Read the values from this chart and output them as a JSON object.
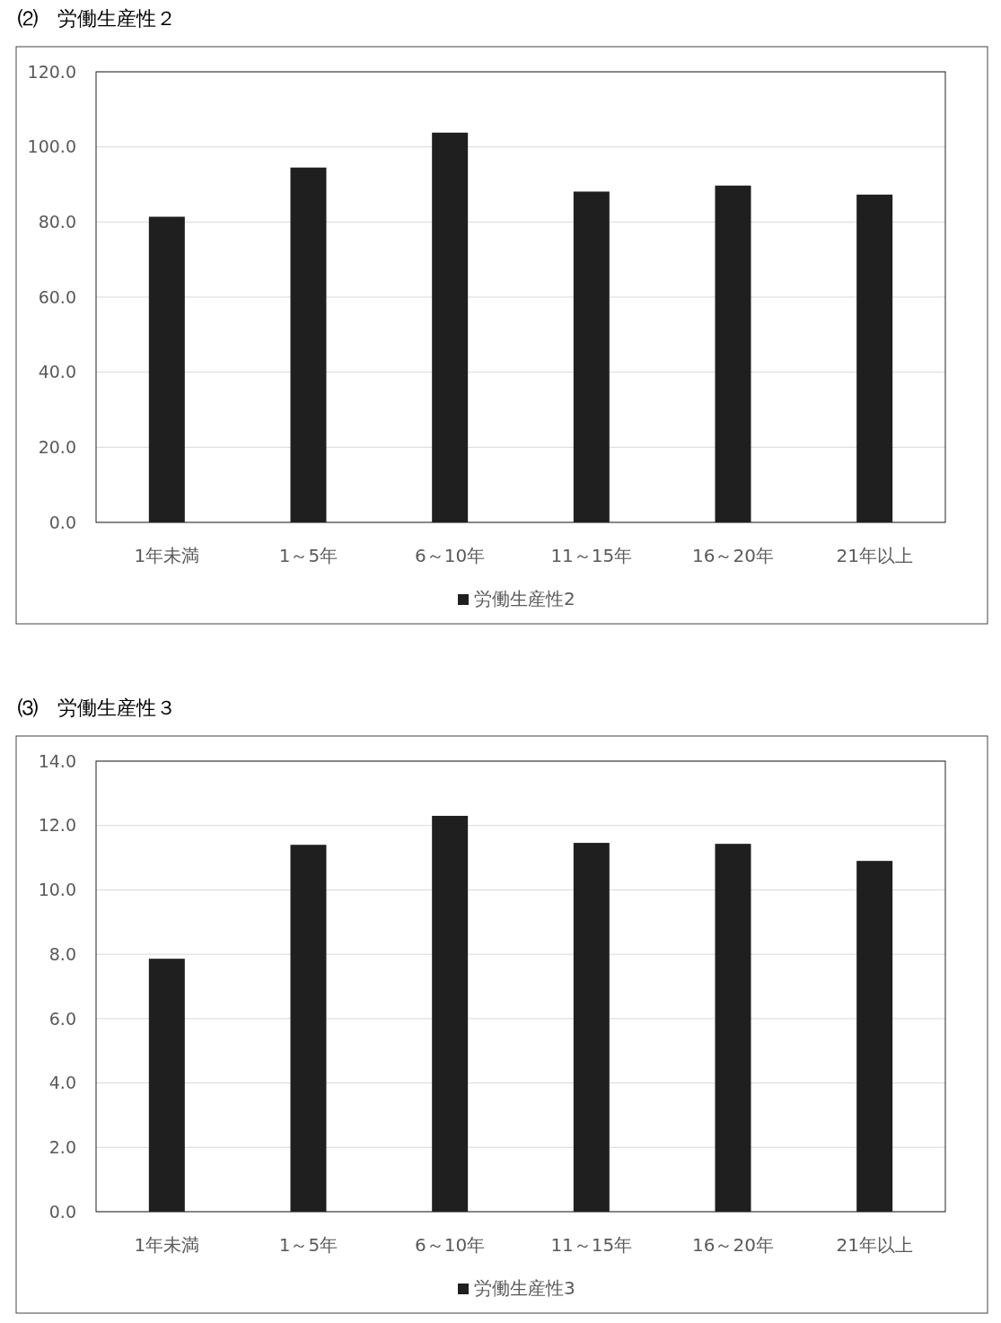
{
  "chart_data": [
    {
      "type": "bar",
      "title": "⑵　労働生産性２",
      "categories": [
        "1年未満",
        "1～5年",
        "6～10年",
        "11～15年",
        "16～20年",
        "21年以上"
      ],
      "series": [
        {
          "name": "労働生産性2",
          "color": "#1f1f1f",
          "values": [
            81.4,
            94.5,
            103.8,
            88.1,
            89.7,
            87.3
          ]
        }
      ],
      "ylim": [
        0,
        120
      ],
      "yticks": [
        {
          "value": 0,
          "label": "0.0"
        },
        {
          "value": 20,
          "label": "20.0"
        },
        {
          "value": 40,
          "label": "40.0"
        },
        {
          "value": 60,
          "label": "60.0"
        },
        {
          "value": 80,
          "label": "80.0"
        },
        {
          "value": 100,
          "label": "100.0"
        },
        {
          "value": 120,
          "label": "120.0"
        }
      ],
      "grid": "y",
      "legend": "bottom"
    },
    {
      "type": "bar",
      "title": "⑶　労働生産性３",
      "categories": [
        "1年未満",
        "1～5年",
        "6～10年",
        "11～15年",
        "16～20年",
        "21年以上"
      ],
      "series": [
        {
          "name": "労働生産性3",
          "color": "#1f1f1f",
          "values": [
            7.86,
            11.4,
            12.3,
            11.46,
            11.43,
            10.9
          ]
        }
      ],
      "ylim": [
        0,
        14
      ],
      "yticks": [
        {
          "value": 0,
          "label": "0.0"
        },
        {
          "value": 2,
          "label": "2.0"
        },
        {
          "value": 4,
          "label": "4.0"
        },
        {
          "value": 6,
          "label": "6.0"
        },
        {
          "value": 8,
          "label": "8.0"
        },
        {
          "value": 10,
          "label": "10.0"
        },
        {
          "value": 12,
          "label": "12.0"
        },
        {
          "value": 14,
          "label": "14.0"
        }
      ],
      "grid": "y",
      "legend": "bottom"
    }
  ]
}
